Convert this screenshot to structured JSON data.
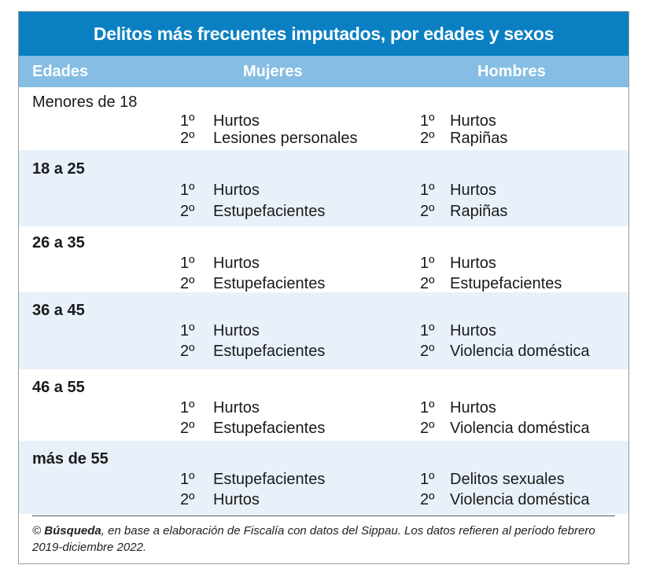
{
  "title": "Delitos más frecuentes imputados, por edades y sexos",
  "headers": {
    "age": "Edades",
    "women": "Mujeres",
    "men": "Hombres"
  },
  "rows": [
    {
      "age": "Menores de 18",
      "bold": false,
      "women": [
        {
          "rank": "1º",
          "crime": "Hurtos"
        },
        {
          "rank": "2º",
          "crime": "Lesiones personales"
        }
      ],
      "men": [
        {
          "rank": "1º",
          "crime": "Hurtos"
        },
        {
          "rank": "2º",
          "crime": "Rapiñas"
        }
      ]
    },
    {
      "age": "18 a 25",
      "bold": true,
      "women": [
        {
          "rank": "1º",
          "crime": "Hurtos"
        },
        {
          "rank": "2º",
          "crime": "Estupefacientes"
        }
      ],
      "men": [
        {
          "rank": "1º",
          "crime": "Hurtos"
        },
        {
          "rank": "2º",
          "crime": "Rapiñas"
        }
      ]
    },
    {
      "age": "26 a 35",
      "bold": true,
      "women": [
        {
          "rank": "1º",
          "crime": "Hurtos"
        },
        {
          "rank": "2º",
          "crime": "Estupefacientes"
        }
      ],
      "men": [
        {
          "rank": "1º",
          "crime": "Hurtos"
        },
        {
          "rank": "2º",
          "crime": "Estupefacientes"
        }
      ]
    },
    {
      "age": "36 a 45",
      "bold": true,
      "women": [
        {
          "rank": "1º",
          "crime": "Hurtos"
        },
        {
          "rank": "2º",
          "crime": "Estupefacientes"
        }
      ],
      "men": [
        {
          "rank": "1º",
          "crime": "Hurtos"
        },
        {
          "rank": "2º",
          "crime": "Violencia doméstica"
        }
      ]
    },
    {
      "age": "46 a 55",
      "bold": true,
      "women": [
        {
          "rank": "1º",
          "crime": "Hurtos"
        },
        {
          "rank": "2º",
          "crime": "Estupefacientes"
        }
      ],
      "men": [
        {
          "rank": "1º",
          "crime": "Hurtos"
        },
        {
          "rank": "2º",
          "crime": "Violencia doméstica"
        }
      ]
    },
    {
      "age": "más de  55",
      "bold": true,
      "women": [
        {
          "rank": "1º",
          "crime": "Estupefacientes"
        },
        {
          "rank": "2º",
          "crime": "Hurtos"
        }
      ],
      "men": [
        {
          "rank": "1º",
          "crime": "Delitos sexuales"
        },
        {
          "rank": "2º",
          "crime": "Violencia doméstica"
        }
      ]
    }
  ],
  "footer": {
    "copyright": "©",
    "source_name": "Búsqueda",
    "text": ", en base a elaboración de Fiscalía con datos del Sippau. Los datos refieren al período febrero 2019-diciembre 2022."
  }
}
